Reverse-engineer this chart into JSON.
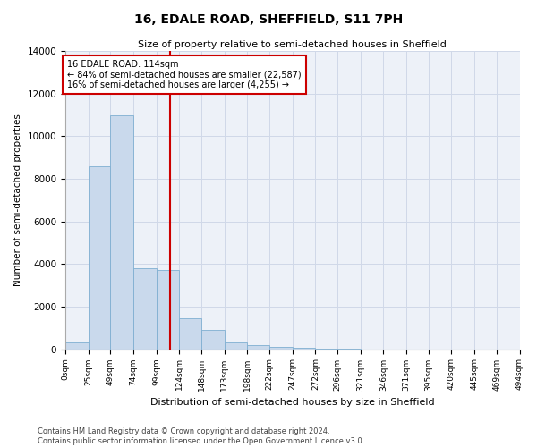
{
  "title": "16, EDALE ROAD, SHEFFIELD, S11 7PH",
  "subtitle": "Size of property relative to semi-detached houses in Sheffield",
  "xlabel": "Distribution of semi-detached houses by size in Sheffield",
  "ylabel": "Number of semi-detached properties",
  "property_size": 114,
  "bar_color": "#c9d9ec",
  "bar_edge_color": "#7fafd1",
  "vline_color": "#cc0000",
  "annotation_box_color": "#cc0000",
  "grid_color": "#d0d8e8",
  "background_color": "#edf1f8",
  "bins": [
    0,
    25,
    49,
    74,
    99,
    124,
    148,
    173,
    198,
    222,
    247,
    272,
    296,
    321,
    346,
    371,
    395,
    420,
    445,
    469,
    494
  ],
  "bin_labels": [
    "0sqm",
    "25sqm",
    "49sqm",
    "74sqm",
    "99sqm",
    "124sqm",
    "148sqm",
    "173sqm",
    "198sqm",
    "222sqm",
    "247sqm",
    "272sqm",
    "296sqm",
    "321sqm",
    "346sqm",
    "371sqm",
    "395sqm",
    "420sqm",
    "445sqm",
    "469sqm",
    "494sqm"
  ],
  "bar_heights": [
    300,
    8600,
    11000,
    3800,
    3700,
    1450,
    900,
    300,
    200,
    100,
    50,
    20,
    5,
    0,
    0,
    0,
    0,
    0,
    0,
    0
  ],
  "annotation_line1": "16 EDALE ROAD: 114sqm",
  "annotation_line2": "← 84% of semi-detached houses are smaller (22,587)",
  "annotation_line3": "16% of semi-detached houses are larger (4,255) →",
  "footer_line1": "Contains HM Land Registry data © Crown copyright and database right 2024.",
  "footer_line2": "Contains public sector information licensed under the Open Government Licence v3.0.",
  "ylim": [
    0,
    14000
  ],
  "yticks": [
    0,
    2000,
    4000,
    6000,
    8000,
    10000,
    12000,
    14000
  ]
}
